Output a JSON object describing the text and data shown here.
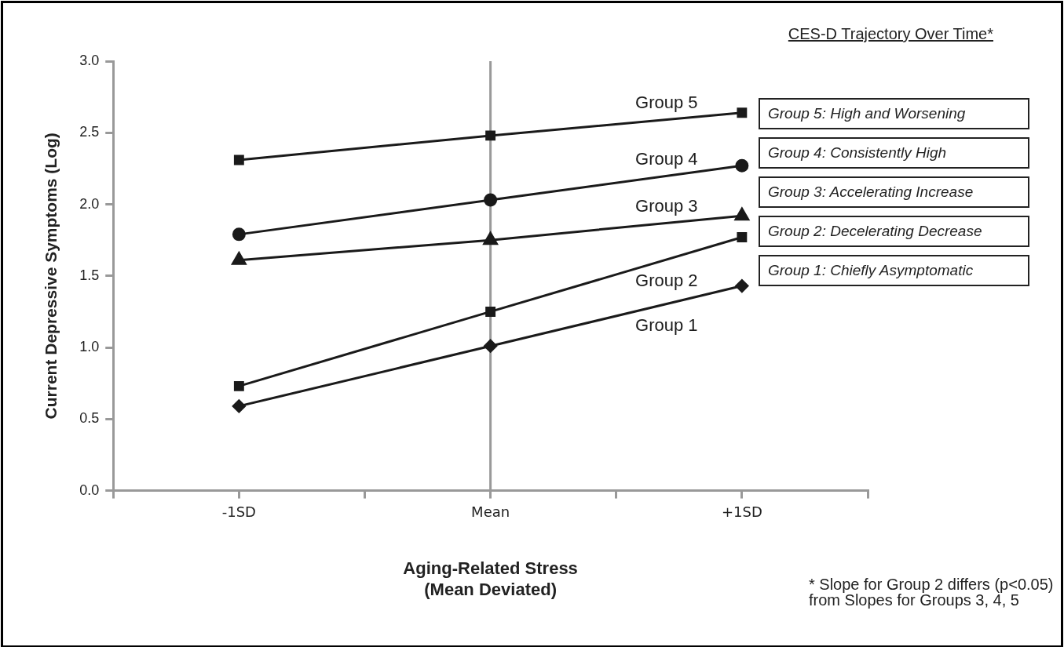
{
  "chart_data": {
    "type": "line",
    "title": "CES-D Trajectory Over Time*",
    "xlabel": "Aging-Related Stress\n(Mean Deviated)",
    "ylabel": "Current Depressive Symptoms (Log)",
    "x": [
      -1,
      0,
      1
    ],
    "xlim": [
      -1.5,
      1.5
    ],
    "xticks": [
      {
        "value": -1.5,
        "label": null
      },
      {
        "value": -1,
        "label": "-1SD"
      },
      {
        "value": -0.5,
        "label": null
      },
      {
        "value": 0,
        "label": "Mean"
      },
      {
        "value": 0.5,
        "label": null
      },
      {
        "value": 1,
        "label": "+1SD"
      },
      {
        "value": 1.5,
        "label": null
      }
    ],
    "ylim": [
      0,
      3
    ],
    "yticks": [
      {
        "value": 0,
        "label": "0.0"
      },
      {
        "value": 0.5,
        "label": "0.5"
      },
      {
        "value": 1,
        "label": "1.0"
      },
      {
        "value": 1.5,
        "label": "1.5"
      },
      {
        "value": 2,
        "label": "2.0"
      },
      {
        "value": 2.5,
        "label": "2.5"
      },
      {
        "value": 3,
        "label": "3.0"
      }
    ],
    "series": [
      {
        "name": "Group 5",
        "color": "#1a1a1a",
        "marker": "square",
        "values": [
          2.31,
          2.48,
          2.64
        ]
      },
      {
        "name": "Group 4",
        "color": "#1a1a1a",
        "marker": "circle",
        "values": [
          1.79,
          2.03,
          2.27
        ]
      },
      {
        "name": "Group 3",
        "color": "#1a1a1a",
        "marker": "triangle",
        "values": [
          1.61,
          1.75,
          1.92
        ]
      },
      {
        "name": "Group 2",
        "color": "#1a1a1a",
        "marker": "square",
        "values": [
          0.73,
          1.25,
          1.77
        ]
      },
      {
        "name": "Group 1",
        "color": "#1a1a1a",
        "marker": "diamond",
        "values": [
          0.59,
          1.01,
          1.43
        ]
      }
    ],
    "ref_lines": [
      {
        "axis": "x",
        "value": 0,
        "label": null,
        "color": "#999999"
      }
    ],
    "annotations": [
      "Group 5: High and Worsening",
      "Group 4: Consistently High",
      "Group 3: Accelerating Increase",
      "Group 2: Decelerating Decrease",
      "Group 1: Chiefly Asymptomatic",
      "* Slope for Group 2 differs (p<0.05)\nfrom Slopes for Groups 3, 4, 5"
    ],
    "grid": false,
    "legend": false,
    "line_style": "solid"
  }
}
